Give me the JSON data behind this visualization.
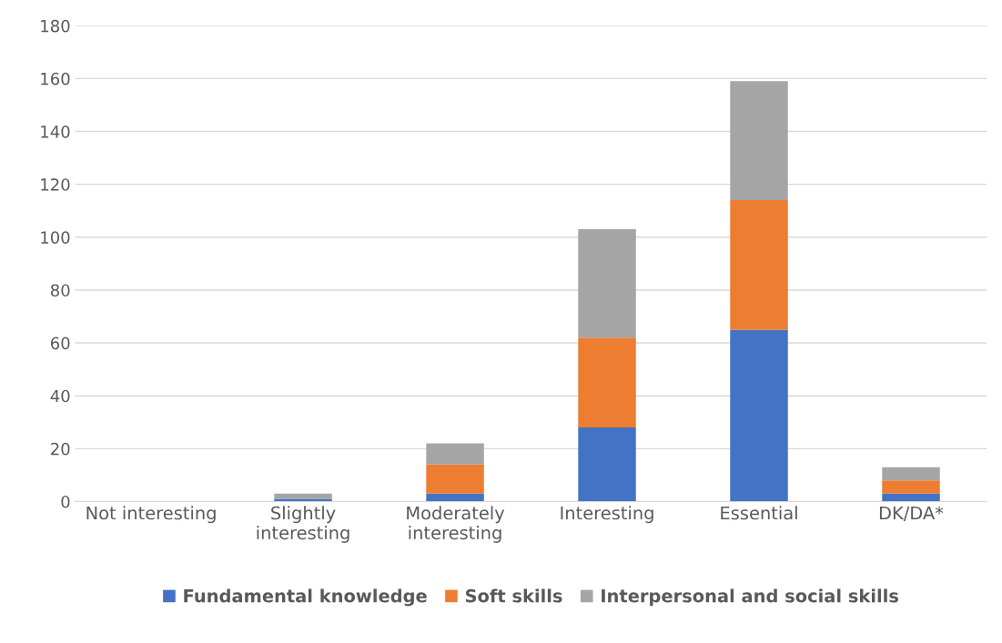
{
  "chart_data": {
    "type": "bar",
    "stacked": true,
    "categories": [
      "Not interesting",
      "Slightly\ninteresting",
      "Moderately\ninteresting",
      "Interesting",
      "Essential",
      "DK/DA*"
    ],
    "series": [
      {
        "name": "Fundamental knowledge",
        "color": "#4472c4",
        "values": [
          0,
          1,
          3,
          28,
          65,
          3
        ]
      },
      {
        "name": "Soft skills",
        "color": "#ed7d31",
        "values": [
          0,
          0,
          11,
          34,
          49,
          5
        ]
      },
      {
        "name": "Interpersonal and social skills",
        "color": "#a5a5a5",
        "values": [
          0,
          2,
          8,
          41,
          45,
          5
        ]
      }
    ],
    "ylim": [
      0,
      180
    ],
    "yticks": [
      0,
      20,
      40,
      60,
      80,
      100,
      120,
      140,
      160,
      180
    ],
    "grid": "y",
    "legend": "bottom"
  }
}
